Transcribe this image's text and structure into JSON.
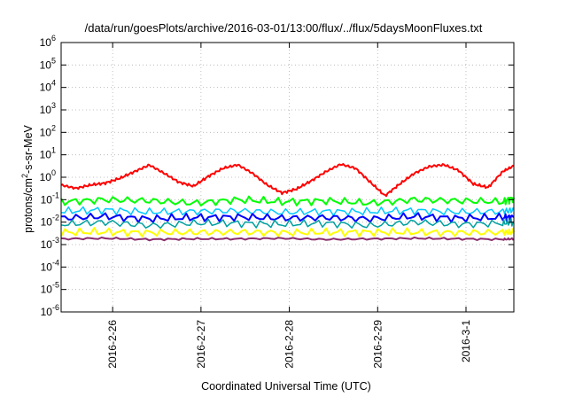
{
  "chart_data": {
    "type": "line",
    "title": "/data/run/goesPlots/archive/2016-03-01/13:00/flux/../flux/5daysMoonFluxes.txt",
    "xlabel": "Coordinated Universal Time (UTC)",
    "ylabel": "protons/cm²-s-sr-MeV",
    "ylabel_parts": {
      "pre": "protons/cm",
      "sup": "2",
      "post": "-s-sr-MeV"
    },
    "yscale": "log",
    "ylim_exponents": [
      -6,
      6
    ],
    "y_ticks": [
      {
        "base": "10",
        "exp": "-6"
      },
      {
        "base": "10",
        "exp": "-5"
      },
      {
        "base": "10",
        "exp": "-4"
      },
      {
        "base": "10",
        "exp": "-3"
      },
      {
        "base": "10",
        "exp": "-2"
      },
      {
        "base": "10",
        "exp": "-1"
      },
      {
        "base": "10",
        "exp": "0"
      },
      {
        "base": "10",
        "exp": "1"
      },
      {
        "base": "10",
        "exp": "2"
      },
      {
        "base": "10",
        "exp": "3"
      },
      {
        "base": "10",
        "exp": "4"
      },
      {
        "base": "10",
        "exp": "5"
      },
      {
        "base": "10",
        "exp": "6"
      }
    ],
    "x_range_days": [
      "2016-02-25T10:00",
      "2016-03-01T13:00"
    ],
    "x_ticks": [
      "2016-2-26",
      "2016-2-27",
      "2016-2-28",
      "2016-2-29",
      "2016-3-1"
    ],
    "x_tick_dates": [
      "2016-02-26",
      "2016-02-27",
      "2016-02-28",
      "2016-02-29",
      "2016-03-01"
    ],
    "grid": true,
    "series": [
      {
        "color": "#ff0000",
        "width": 2,
        "x": [
          "2016-02-25T10:00",
          "2016-02-25T14:00",
          "2016-02-25T18:00",
          "2016-02-25T22:00",
          "2016-02-26T02:00",
          "2016-02-26T06:00",
          "2016-02-26T10:00",
          "2016-02-26T14:00",
          "2016-02-26T18:00",
          "2016-02-26T22:00",
          "2016-02-27T02:00",
          "2016-02-27T06:00",
          "2016-02-27T10:00",
          "2016-02-27T14:00",
          "2016-02-27T18:00",
          "2016-02-27T22:00",
          "2016-02-28T02:00",
          "2016-02-28T06:00",
          "2016-02-28T10:00",
          "2016-02-28T14:00",
          "2016-02-28T18:00",
          "2016-02-28T22:00",
          "2016-02-29T02:00",
          "2016-02-29T06:00",
          "2016-02-29T10:00",
          "2016-02-29T14:00",
          "2016-02-29T18:00",
          "2016-02-29T22:00",
          "2016-03-01T02:00",
          "2016-03-01T06:00",
          "2016-03-01T10:00",
          "2016-03-01T13:00"
        ],
        "y": [
          0.45,
          0.32,
          0.45,
          0.55,
          0.9,
          1.8,
          3.5,
          1.5,
          0.6,
          0.4,
          1.1,
          2.5,
          3.6,
          1.5,
          0.45,
          0.2,
          0.3,
          0.7,
          1.8,
          3.8,
          2.5,
          0.6,
          0.15,
          0.5,
          1.5,
          3.0,
          3.6,
          2.0,
          0.5,
          0.35,
          1.8,
          3.2
        ]
      },
      {
        "color": "#00ff00",
        "width": 2,
        "x": [
          "2016-02-25T10:00",
          "2016-02-25T22:00",
          "2016-02-26T10:00",
          "2016-02-26T22:00",
          "2016-02-27T10:00",
          "2016-02-27T22:00",
          "2016-02-28T10:00",
          "2016-02-28T22:00",
          "2016-02-29T10:00",
          "2016-02-29T22:00",
          "2016-03-01T10:00",
          "2016-03-01T13:00"
        ],
        "y": [
          0.08,
          0.1,
          0.09,
          0.07,
          0.1,
          0.08,
          0.09,
          0.07,
          0.1,
          0.09,
          0.08,
          0.12
        ]
      },
      {
        "color": "#00c8ff",
        "width": 1.5,
        "x": [
          "2016-02-25T10:00",
          "2016-02-25T22:00",
          "2016-02-26T10:00",
          "2016-02-26T22:00",
          "2016-02-27T10:00",
          "2016-02-27T22:00",
          "2016-02-28T10:00",
          "2016-02-28T22:00",
          "2016-02-29T10:00",
          "2016-02-29T22:00",
          "2016-03-01T10:00",
          "2016-03-01T13:00"
        ],
        "y": [
          0.03,
          0.035,
          0.028,
          0.03,
          0.032,
          0.027,
          0.03,
          0.029,
          0.033,
          0.028,
          0.03,
          0.035
        ]
      },
      {
        "color": "#0000ff",
        "width": 2,
        "x": [
          "2016-02-25T10:00",
          "2016-02-25T22:00",
          "2016-02-26T10:00",
          "2016-02-26T22:00",
          "2016-02-27T10:00",
          "2016-02-27T22:00",
          "2016-02-28T10:00",
          "2016-02-28T22:00",
          "2016-02-29T10:00",
          "2016-02-29T22:00",
          "2016-03-01T10:00",
          "2016-03-01T13:00"
        ],
        "y": [
          0.015,
          0.018,
          0.014,
          0.016,
          0.017,
          0.015,
          0.016,
          0.014,
          0.018,
          0.015,
          0.016,
          0.017
        ]
      },
      {
        "color": "#00a0a0",
        "width": 1.5,
        "x": [
          "2016-02-25T10:00",
          "2016-02-25T22:00",
          "2016-02-26T10:00",
          "2016-02-26T22:00",
          "2016-02-27T10:00",
          "2016-02-27T22:00",
          "2016-02-28T10:00",
          "2016-02-28T22:00",
          "2016-02-29T10:00",
          "2016-02-29T22:00",
          "2016-03-01T10:00",
          "2016-03-01T13:00"
        ],
        "y": [
          0.008,
          0.01,
          0.007,
          0.009,
          0.009,
          0.008,
          0.009,
          0.007,
          0.01,
          0.008,
          0.009,
          0.01
        ]
      },
      {
        "color": "#ffff00",
        "width": 2,
        "x": [
          "2016-02-25T10:00",
          "2016-02-25T22:00",
          "2016-02-26T10:00",
          "2016-02-26T22:00",
          "2016-02-27T10:00",
          "2016-02-27T22:00",
          "2016-02-28T10:00",
          "2016-02-28T22:00",
          "2016-02-29T10:00",
          "2016-02-29T22:00",
          "2016-03-01T10:00",
          "2016-03-01T13:00"
        ],
        "y": [
          0.0035,
          0.0036,
          0.0034,
          0.0035,
          0.0036,
          0.0034,
          0.0035,
          0.0036,
          0.0035,
          0.0034,
          0.0035,
          0.0036
        ]
      },
      {
        "color": "#8b2d6e",
        "width": 2,
        "x": [
          "2016-02-25T10:00",
          "2016-02-25T22:00",
          "2016-02-26T10:00",
          "2016-02-26T22:00",
          "2016-02-27T10:00",
          "2016-02-27T22:00",
          "2016-02-28T10:00",
          "2016-02-28T22:00",
          "2016-02-29T10:00",
          "2016-02-29T22:00",
          "2016-03-01T10:00",
          "2016-03-01T13:00"
        ],
        "y": [
          0.0018,
          0.0019,
          0.0017,
          0.0018,
          0.0018,
          0.0019,
          0.0017,
          0.0018,
          0.0019,
          0.0018,
          0.0017,
          0.0018
        ]
      }
    ]
  }
}
